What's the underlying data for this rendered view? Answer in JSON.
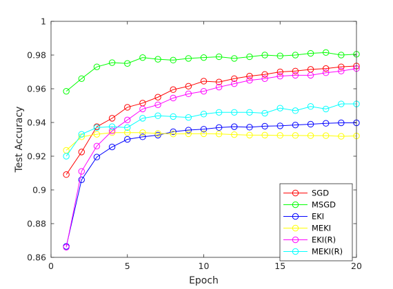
{
  "chart_data": {
    "type": "line",
    "xlabel": "Epoch",
    "ylabel": "Test Accuracy",
    "xlim": [
      0,
      20
    ],
    "ylim": [
      0.86,
      1
    ],
    "xticks": [
      "0",
      "5",
      "10",
      "15",
      "20"
    ],
    "yticks": [
      "0.86",
      "0.88",
      "0.9",
      "0.92",
      "0.94",
      "0.96",
      "0.98",
      "1"
    ],
    "grid": false,
    "legend_position": "bottom-right",
    "marker": "open-circle",
    "x": [
      1,
      2,
      3,
      4,
      5,
      6,
      7,
      8,
      9,
      10,
      11,
      12,
      13,
      14,
      15,
      16,
      17,
      18,
      19,
      20
    ],
    "series": [
      {
        "name": "SGD",
        "color": "#ff0000",
        "values": [
          0.9091,
          0.9225,
          0.9375,
          0.9425,
          0.949,
          0.9515,
          0.955,
          0.9595,
          0.9615,
          0.9645,
          0.964,
          0.966,
          0.9675,
          0.9685,
          0.97,
          0.9705,
          0.9715,
          0.972,
          0.973,
          0.9735
        ]
      },
      {
        "name": "MSGD",
        "color": "#00ff00",
        "values": [
          0.9585,
          0.966,
          0.973,
          0.9755,
          0.975,
          0.9785,
          0.9775,
          0.977,
          0.978,
          0.9785,
          0.979,
          0.978,
          0.979,
          0.98,
          0.9795,
          0.98,
          0.981,
          0.9815,
          0.98,
          0.9805
        ]
      },
      {
        "name": "EKI",
        "color": "#0000ff",
        "values": [
          0.8665,
          0.906,
          0.9195,
          0.9255,
          0.93,
          0.9315,
          0.9325,
          0.9345,
          0.9355,
          0.936,
          0.937,
          0.9375,
          0.9372,
          0.9378,
          0.938,
          0.9385,
          0.939,
          0.9395,
          0.9398,
          0.9398
        ]
      },
      {
        "name": "MEKI",
        "color": "#ffff00",
        "values": [
          0.9235,
          0.9315,
          0.933,
          0.934,
          0.934,
          0.934,
          0.9335,
          0.9332,
          0.9333,
          0.9333,
          0.9332,
          0.9328,
          0.9325,
          0.9325,
          0.9323,
          0.9323,
          0.9322,
          0.9322,
          0.9318,
          0.932
        ]
      },
      {
        "name": "EKI(R)",
        "color": "#ff00ff",
        "values": [
          0.866,
          0.911,
          0.926,
          0.935,
          0.9415,
          0.948,
          0.9505,
          0.9545,
          0.957,
          0.9585,
          0.961,
          0.963,
          0.965,
          0.966,
          0.9675,
          0.968,
          0.968,
          0.9695,
          0.9705,
          0.972
        ]
      },
      {
        "name": "MEKI(R)",
        "color": "#00ffff",
        "values": [
          0.92,
          0.933,
          0.937,
          0.9375,
          0.937,
          0.9425,
          0.944,
          0.9435,
          0.943,
          0.945,
          0.946,
          0.946,
          0.946,
          0.9455,
          0.9485,
          0.947,
          0.9495,
          0.948,
          0.951,
          0.951
        ]
      }
    ]
  }
}
